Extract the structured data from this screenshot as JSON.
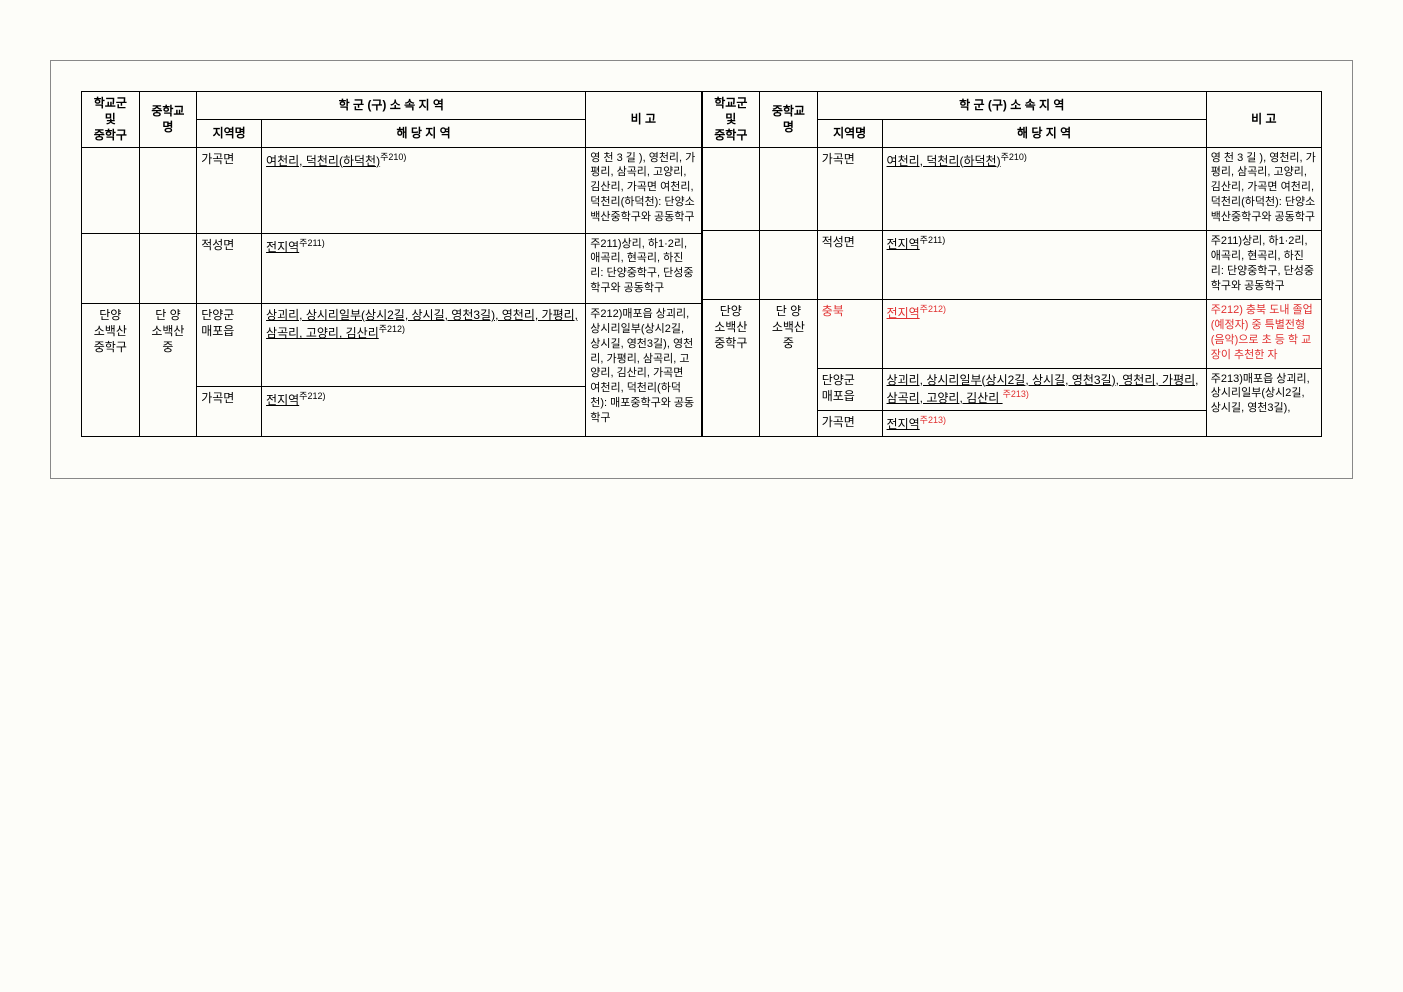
{
  "header": {
    "col_hakgyo": "학교군\n및\n중학구",
    "col_jung": "중학교\n명",
    "col_group": "학 군 (구)   소 속 지 역",
    "col_region": "지역명",
    "col_area": "해    당    지    역",
    "col_bigo": "비    고"
  },
  "left": {
    "rows": [
      {
        "hakgyo": "",
        "jung": "",
        "region": "가곡면",
        "area_u": "여천리,  덕천리(하덕천)",
        "area_sup": "주210)",
        "bigo": "영 천 3 길 ), 영천리, 가평리, 삼곡리, 고양리, 김산리, 가곡면 여천리, 덕천리(하덕천): 단양소백산중학구와 공동학구"
      },
      {
        "hakgyo": "",
        "jung": "",
        "region": "적성면",
        "area_u": "전지역",
        "area_sup": "주211)",
        "bigo": "주211)상리, 하1·2리, 애곡리, 현곡리, 하진리: 단양중학구, 단성중학구와 공동학구"
      },
      {
        "hakgyo": "단양\n소백산\n중학구",
        "jung": "단  양\n소백산\n중",
        "region": "단양군\n매포읍",
        "region2": "가곡면",
        "area1_u": "상괴리, 상시리일부(상시2길, 상시길, 영천3길), 영천리, 가평리, 삼곡리, 고양리, 김산리",
        "area1_sup": "주212)",
        "area2_u": "전지역",
        "area2_sup": "주212)",
        "bigo": "주212)매포읍 상괴리, 상시리일부(상시2길, 상시길, 영천3길), 영천리, 가평리, 삼곡리, 고양리, 김산리, 가곡면 여천리, 덕천리(하덕천): 매포중학구와 공동학구"
      }
    ]
  },
  "right": {
    "rows": [
      {
        "hakgyo": "",
        "jung": "",
        "region": "가곡면",
        "area_u": "여천리,  덕천리(하덕천)",
        "area_sup": "주210)",
        "bigo": "영 천 3 길 ), 영천리, 가평리, 삼곡리, 고양리, 김산리, 가곡면 여천리, 덕천리(하덕천): 단양소백산중학구와 공동학구"
      },
      {
        "hakgyo": "",
        "jung": "",
        "region": "적성면",
        "area_u": "전지역",
        "area_sup": "주211)",
        "bigo": "주211)상리, 하1·2리, 애곡리, 현곡리, 하진리: 단양중학구, 단성중학구와 공동학구"
      },
      {
        "hakgyo": "단양\n소백산\n중학구",
        "jung": "단  양\n소백산\n중",
        "region_a": "충북",
        "area_a_u": "전지역",
        "area_a_sup": "주212)",
        "bigo_a": "주212) 충북 도내 졸업(예정자) 중 특별전형(음악)으로 초 등 학 교 장이 추천한 자",
        "region_b": "단양군\n매포읍",
        "area_b_u": "상괴리, 상시리일부(상시2길, 상시길, 영천3길), 영천리, 가평리, 삼곡리, 고양리, 김산리 ",
        "area_b_sup": "주213)",
        "bigo_b": "주213)매포읍 상괴리, 상시리일부(상시2길, 상시길, 영천3길),",
        "region_c": "가곡면",
        "area_c_u": "전지역",
        "area_c_sup": "주213)"
      }
    ]
  }
}
